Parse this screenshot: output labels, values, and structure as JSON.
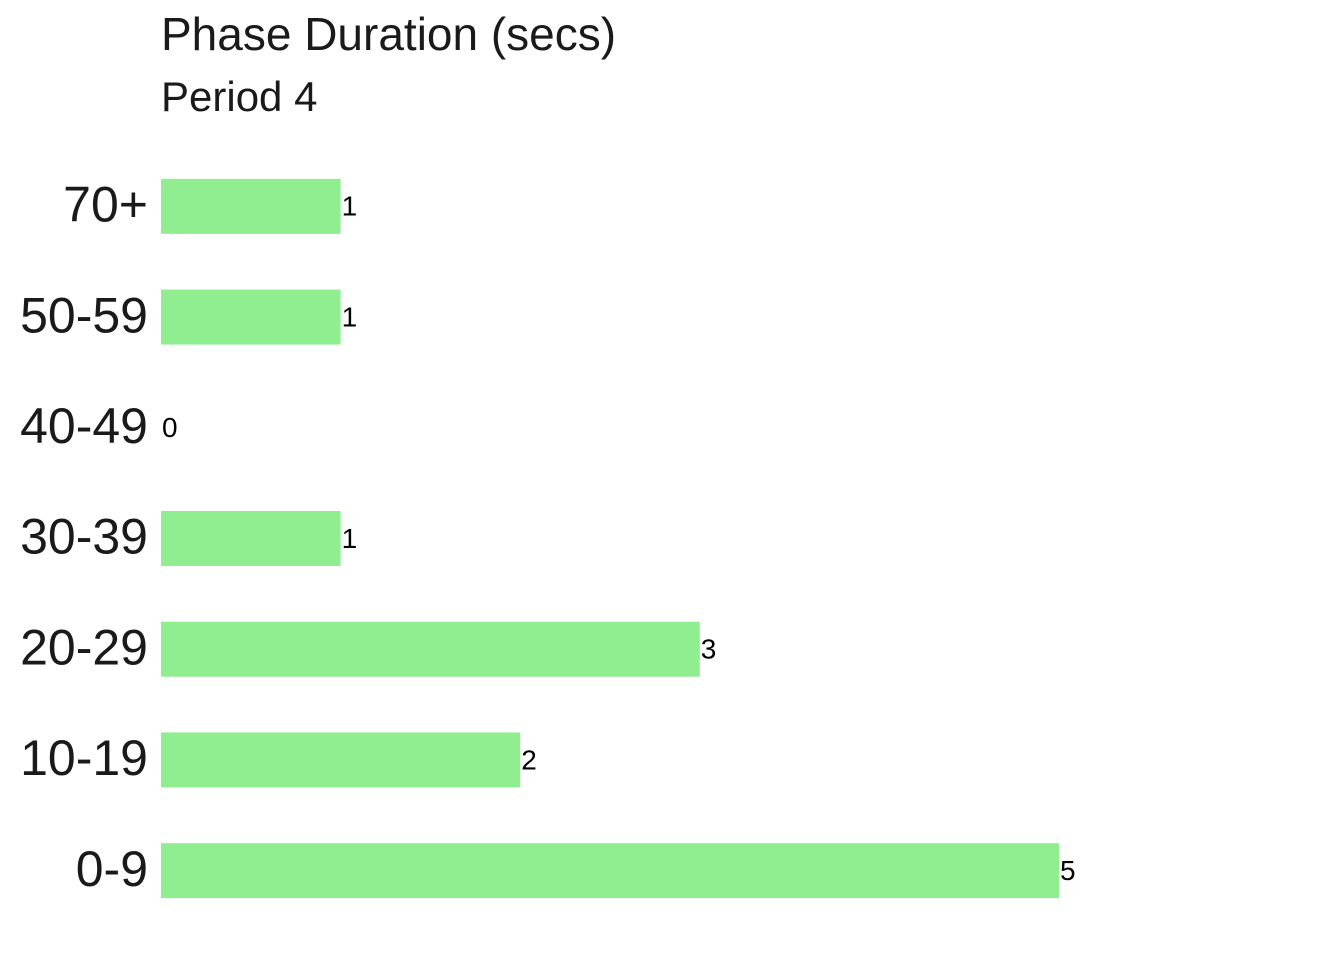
{
  "chart_data": {
    "type": "bar",
    "orientation": "horizontal",
    "title": "Phase Duration (secs)",
    "subtitle": "Period 4",
    "categories": [
      "70+",
      "50-59",
      "40-49",
      "30-39",
      "20-29",
      "10-19",
      "0-9"
    ],
    "values": [
      1,
      1,
      0,
      1,
      3,
      2,
      5
    ],
    "color": "#90ee90"
  }
}
